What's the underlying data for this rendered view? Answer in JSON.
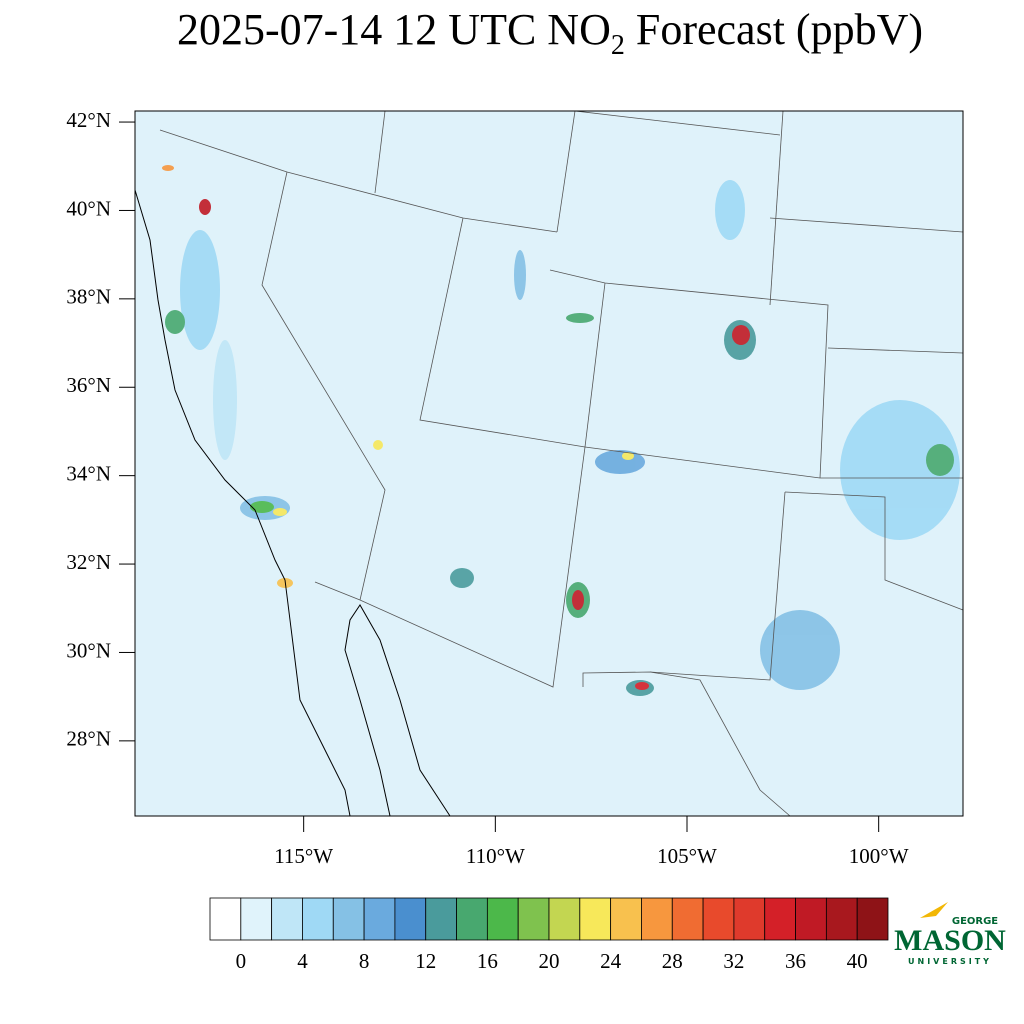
{
  "title": {
    "main": "2025-07-14 12 UTC NO",
    "sub": "2",
    "tail": " Forecast (ppbV)"
  },
  "map": {
    "xlim": [
      -119.4,
      -97.8
    ],
    "ylim": [
      26.3,
      42.25
    ],
    "xticks": [
      {
        "value": -115,
        "label": "115°W"
      },
      {
        "value": -110,
        "label": "110°W"
      },
      {
        "value": -105,
        "label": "105°W"
      },
      {
        "value": -100,
        "label": "100°W"
      }
    ],
    "yticks": [
      {
        "value": 42,
        "label": "42°N"
      },
      {
        "value": 40,
        "label": "40°N"
      },
      {
        "value": 38,
        "label": "38°N"
      },
      {
        "value": 36,
        "label": "36°N"
      },
      {
        "value": 34,
        "label": "34°N"
      },
      {
        "value": 32,
        "label": "32°N"
      },
      {
        "value": 30,
        "label": "30°N"
      },
      {
        "value": 28,
        "label": "28°N"
      }
    ],
    "background": "#dff2fa"
  },
  "colorbar": {
    "range": [
      -2,
      42
    ],
    "ticks": [
      0,
      4,
      8,
      12,
      16,
      20,
      24,
      28,
      32,
      36,
      40
    ],
    "colors": [
      "#ffffff",
      "#e0f3fb",
      "#bfe6f7",
      "#9fd9f5",
      "#85c1e5",
      "#6aaade",
      "#4a8fcf",
      "#4a9b9c",
      "#48a86f",
      "#4cb84a",
      "#7fc24e",
      "#c3d651",
      "#f7e85a",
      "#f8c14e",
      "#f7973e",
      "#f06c32",
      "#e84a2c",
      "#df3a2c",
      "#d42028",
      "#c01a25",
      "#a8181e",
      "#8e1317"
    ]
  },
  "logo": {
    "top": "GEORGE",
    "main": "MASON",
    "bottom": "UNIVERSITY"
  }
}
